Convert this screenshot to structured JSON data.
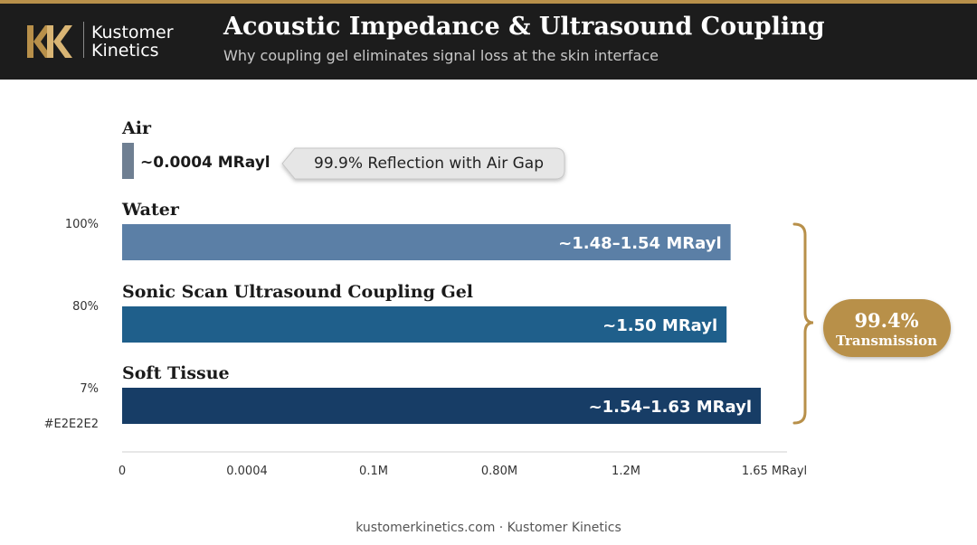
{
  "header": {
    "brand_line1": "Kustomer",
    "brand_line2": "Kinetics",
    "title": "Acoustic Impedance & Ultrasound Coupling",
    "subtitle": "Why coupling gel eliminates signal loss at the skin interface"
  },
  "colors": {
    "accent_gold": "#b8904a",
    "header_bg": "#1c1c1c",
    "air": "#6f7f92",
    "water": "#5b7fa6",
    "gel": "#1f5f8b",
    "tissue": "#173d66"
  },
  "chart_data": {
    "type": "bar",
    "orientation": "horizontal",
    "unit": "MRayl",
    "categories": [
      "Air",
      "Water",
      "Sonic Scan Ultrasound Coupling Gel",
      "Soft Tissue"
    ],
    "values": [
      0.0004,
      1.51,
      1.5,
      1.585
    ],
    "value_labels": [
      "~0.0004 MRayl",
      "~1.48–1.54 MRayl",
      "~1.50 MRayl",
      "~1.54–1.63 MRayl"
    ],
    "left_axis_labels": [
      "100%",
      "80%",
      "7%",
      "#E2E2E2"
    ],
    "x_tick_labels": [
      "0",
      "0.0004",
      "0.1M",
      "0.80M",
      "1.2M",
      "1.65 MRayl"
    ],
    "xlim": [
      0,
      1.65
    ],
    "grid": false,
    "annotations": {
      "reflection_callout": "99.9% Reflection with Air Gap",
      "transmission_value": "99.4%",
      "transmission_label": "Transmission"
    }
  },
  "footer": "kustomerkinetics.com · Kustomer Kinetics"
}
